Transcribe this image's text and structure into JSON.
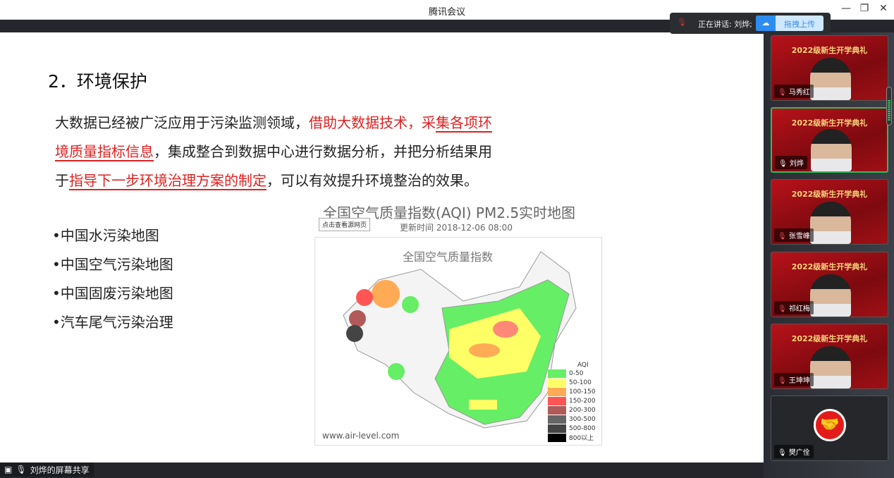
{
  "window": {
    "title": "腾讯会议"
  },
  "speaking": {
    "label": "正在讲话: 刘烨;",
    "upload_label": "拖拽上传"
  },
  "slide": {
    "heading": "2．环境保护",
    "para": {
      "p1": "大数据已经被广泛应用于污染监测领域，",
      "r1": "借助大数据技术，采",
      "r2": "集各项环境质量指标信息",
      "p2": "，集成整合到数据中心进行数据分析，并把分析结果用于",
      "r3": "指导下一步环境治理方案的制定",
      "p3": "，可以有效提升环境整治的效果。"
    },
    "bullets": [
      "•中国水污染地图",
      "•中国空气污染地图",
      "•中国固废污染地图",
      "•汽车尾气污染治理"
    ],
    "map": {
      "title": "全国空气质量指数(AQI) PM2.5实时地图",
      "source_button": "点击查看源网页",
      "updated": "更新时间 2018-12-06 08:00",
      "inner_title": "全国空气质量指数",
      "site": "www.air-level.com",
      "legend_title": "AQI",
      "legend": [
        {
          "label": "0-50",
          "color": "#66ee66"
        },
        {
          "label": "50-100",
          "color": "#ffff66"
        },
        {
          "label": "100-150",
          "color": "#ffaa55"
        },
        {
          "label": "150-200",
          "color": "#ff5555"
        },
        {
          "label": "200-300",
          "color": "#b05a5a"
        },
        {
          "label": "300-500",
          "color": "#666666"
        },
        {
          "label": "500-800",
          "color": "#444444"
        },
        {
          "label": "800以上",
          "color": "#000000"
        }
      ]
    }
  },
  "share": {
    "label": "刘烨的屏幕共享"
  },
  "participants": [
    {
      "name": "马秀红",
      "muted": true
    },
    {
      "name": "刘烨",
      "muted": false,
      "active": true
    },
    {
      "name": "张雪峰",
      "muted": true
    },
    {
      "name": "祁红梅",
      "muted": true
    },
    {
      "name": "王坤坤",
      "muted": true
    },
    {
      "name": "樊广佺",
      "muted": false,
      "camera_off": true
    }
  ],
  "banner": "2022级新生开学典礼"
}
